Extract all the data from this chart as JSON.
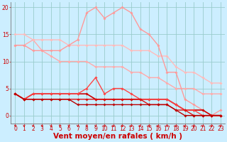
{
  "background_color": "#cceeff",
  "grid_color": "#99cccc",
  "xlabel": "Vent moyen/en rafales ( km/h )",
  "xlim": [
    -0.5,
    23.5
  ],
  "ylim": [
    -1.5,
    21
  ],
  "yticks": [
    0,
    5,
    10,
    15,
    20
  ],
  "xticks": [
    0,
    1,
    2,
    3,
    4,
    5,
    6,
    7,
    8,
    9,
    10,
    11,
    12,
    13,
    14,
    15,
    16,
    17,
    18,
    19,
    20,
    21,
    22,
    23
  ],
  "series": [
    {
      "x": [
        0,
        1,
        2,
        3,
        4,
        5,
        6,
        7,
        8,
        9,
        10,
        11,
        12,
        13,
        14,
        15,
        16,
        17,
        18,
        19,
        20,
        21,
        22,
        23
      ],
      "y": [
        13,
        13,
        14,
        12,
        11,
        10,
        10,
        10,
        10,
        9,
        9,
        9,
        9,
        8,
        8,
        7,
        7,
        6,
        5,
        5,
        5,
        4,
        4,
        4
      ],
      "color": "#ffaaaa",
      "lw": 1.0
    },
    {
      "x": [
        0,
        1,
        2,
        3,
        4,
        5,
        6,
        7,
        8,
        9,
        10,
        11,
        12,
        13,
        14,
        15,
        16,
        17,
        18,
        19,
        20,
        21,
        22,
        23
      ],
      "y": [
        15,
        15,
        14,
        14,
        14,
        14,
        13,
        13,
        13,
        13,
        13,
        13,
        13,
        12,
        12,
        12,
        11,
        11,
        9,
        8,
        8,
        7,
        6,
        6
      ],
      "color": "#ffbbbb",
      "lw": 1.0
    },
    {
      "x": [
        0,
        1,
        2,
        3,
        4,
        5,
        6,
        7,
        8,
        9,
        10,
        11,
        12,
        13,
        14,
        15,
        16,
        17,
        18,
        19,
        20,
        21,
        22,
        23
      ],
      "y": [
        13,
        13,
        12,
        12,
        12,
        12,
        13,
        14,
        19,
        20,
        18,
        19,
        20,
        19,
        16,
        15,
        13,
        8,
        8,
        3,
        2,
        1,
        0,
        1
      ],
      "color": "#ff9999",
      "lw": 1.0
    },
    {
      "x": [
        0,
        1,
        2,
        3,
        4,
        5,
        6,
        7,
        8,
        9,
        10,
        11,
        12,
        13,
        14,
        15,
        16,
        17,
        18,
        19,
        20,
        21,
        22,
        23
      ],
      "y": [
        4,
        3,
        4,
        4,
        4,
        4,
        4,
        4,
        4,
        3,
        3,
        3,
        3,
        3,
        3,
        3,
        3,
        3,
        2,
        1,
        1,
        1,
        0,
        0
      ],
      "color": "#cc0000",
      "lw": 1.2
    },
    {
      "x": [
        0,
        1,
        2,
        3,
        4,
        5,
        6,
        7,
        8,
        9,
        10,
        11,
        12,
        13,
        14,
        15,
        16,
        17,
        18,
        19,
        20,
        21,
        22,
        23
      ],
      "y": [
        4,
        3,
        4,
        4,
        4,
        4,
        4,
        4,
        5,
        7,
        4,
        5,
        5,
        4,
        3,
        3,
        3,
        3,
        2,
        1,
        1,
        0,
        0,
        0
      ],
      "color": "#ff4444",
      "lw": 1.0
    },
    {
      "x": [
        0,
        1,
        2,
        3,
        4,
        5,
        6,
        7,
        8,
        9,
        10,
        11,
        12,
        13,
        14,
        15,
        16,
        17,
        18,
        19,
        20,
        21,
        22,
        23
      ],
      "y": [
        4,
        3,
        3,
        3,
        3,
        3,
        3,
        3,
        3,
        3,
        3,
        3,
        3,
        3,
        3,
        2,
        2,
        2,
        1,
        1,
        0,
        0,
        0,
        0
      ],
      "color": "#dd1111",
      "lw": 1.0
    },
    {
      "x": [
        0,
        1,
        2,
        3,
        4,
        5,
        6,
        7,
        8,
        9,
        10,
        11,
        12,
        13,
        14,
        15,
        16,
        17,
        18,
        19,
        20,
        21,
        22,
        23
      ],
      "y": [
        4,
        3,
        3,
        3,
        3,
        3,
        3,
        2,
        2,
        2,
        2,
        2,
        2,
        2,
        2,
        2,
        2,
        2,
        1,
        0,
        0,
        0,
        0,
        0
      ],
      "color": "#bb0000",
      "lw": 1.0
    }
  ],
  "marker": "D",
  "marker_size": 1.8,
  "arrow_color": "#cc0000",
  "xlabel_color": "#cc0000",
  "tick_color": "#cc0000",
  "tick_fontsize": 5.5,
  "xlabel_fontsize": 7.5
}
